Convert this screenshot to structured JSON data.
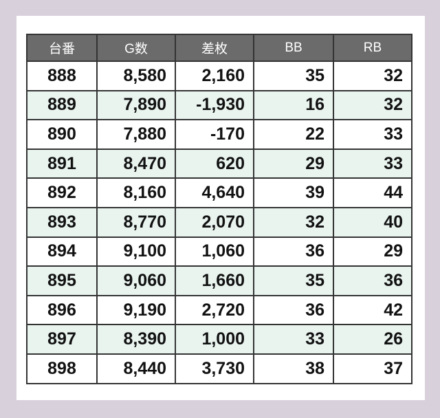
{
  "table": {
    "headers": [
      "台番",
      "G数",
      "差枚",
      "BB",
      "RB"
    ],
    "rows": [
      [
        "888",
        "8,580",
        "2,160",
        "35",
        "32"
      ],
      [
        "889",
        "7,890",
        "-1,930",
        "16",
        "32"
      ],
      [
        "890",
        "7,880",
        "-170",
        "22",
        "33"
      ],
      [
        "891",
        "8,470",
        "620",
        "29",
        "33"
      ],
      [
        "892",
        "8,160",
        "4,640",
        "39",
        "44"
      ],
      [
        "893",
        "8,770",
        "2,070",
        "32",
        "40"
      ],
      [
        "894",
        "9,100",
        "1,060",
        "36",
        "29"
      ],
      [
        "895",
        "9,060",
        "1,660",
        "35",
        "36"
      ],
      [
        "896",
        "9,190",
        "2,720",
        "36",
        "42"
      ],
      [
        "897",
        "8,390",
        "1,000",
        "33",
        "26"
      ],
      [
        "898",
        "8,440",
        "3,730",
        "38",
        "37"
      ]
    ]
  },
  "colors": {
    "background": "#d8d0da",
    "header": "#6b6b6b",
    "alt_row": "#e9f4ef",
    "border": "#333333"
  }
}
